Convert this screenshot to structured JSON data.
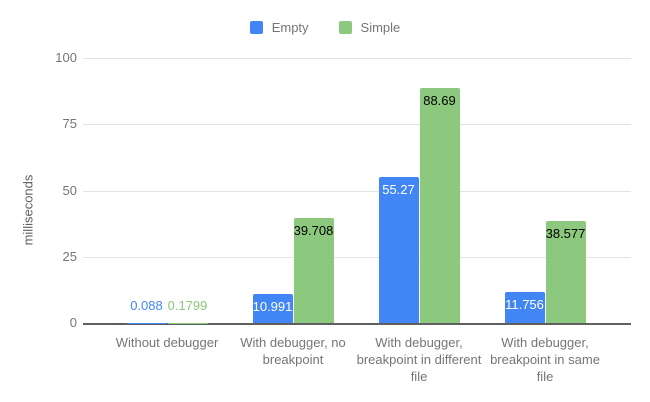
{
  "chart_data": {
    "type": "bar",
    "title": "",
    "ylabel": "milliseconds",
    "xlabel": "",
    "ylim": [
      0,
      100
    ],
    "yticks": [
      0,
      25,
      50,
      75,
      100
    ],
    "grid": true,
    "legend_position": "top",
    "categories": [
      "Without debugger",
      "With debugger, no breakpoint",
      "With debugger, breakpoint in different file",
      "With debugger, breakpoint in same file"
    ],
    "series": [
      {
        "name": "Empty",
        "color": "#4285f4",
        "inside_label_color": "#ffffff",
        "values": [
          0.088,
          10.991,
          55.27,
          11.756
        ],
        "labels": [
          "0.088",
          "10.991",
          "55.27",
          "11.756"
        ]
      },
      {
        "name": "Simple",
        "color": "#8cc87d",
        "inside_label_color": "#000000",
        "values": [
          0.1799,
          39.708,
          88.69,
          38.577
        ],
        "labels": [
          "0.1799",
          "39.708",
          "88.69",
          "38.577"
        ]
      }
    ],
    "colors": {
      "tick_label": "#757575",
      "category_label": "#757575",
      "gridline": "#e3e3e3",
      "baseline": "#5f5f5f",
      "legend_text": "#757575",
      "axis_title": "#616161"
    }
  }
}
